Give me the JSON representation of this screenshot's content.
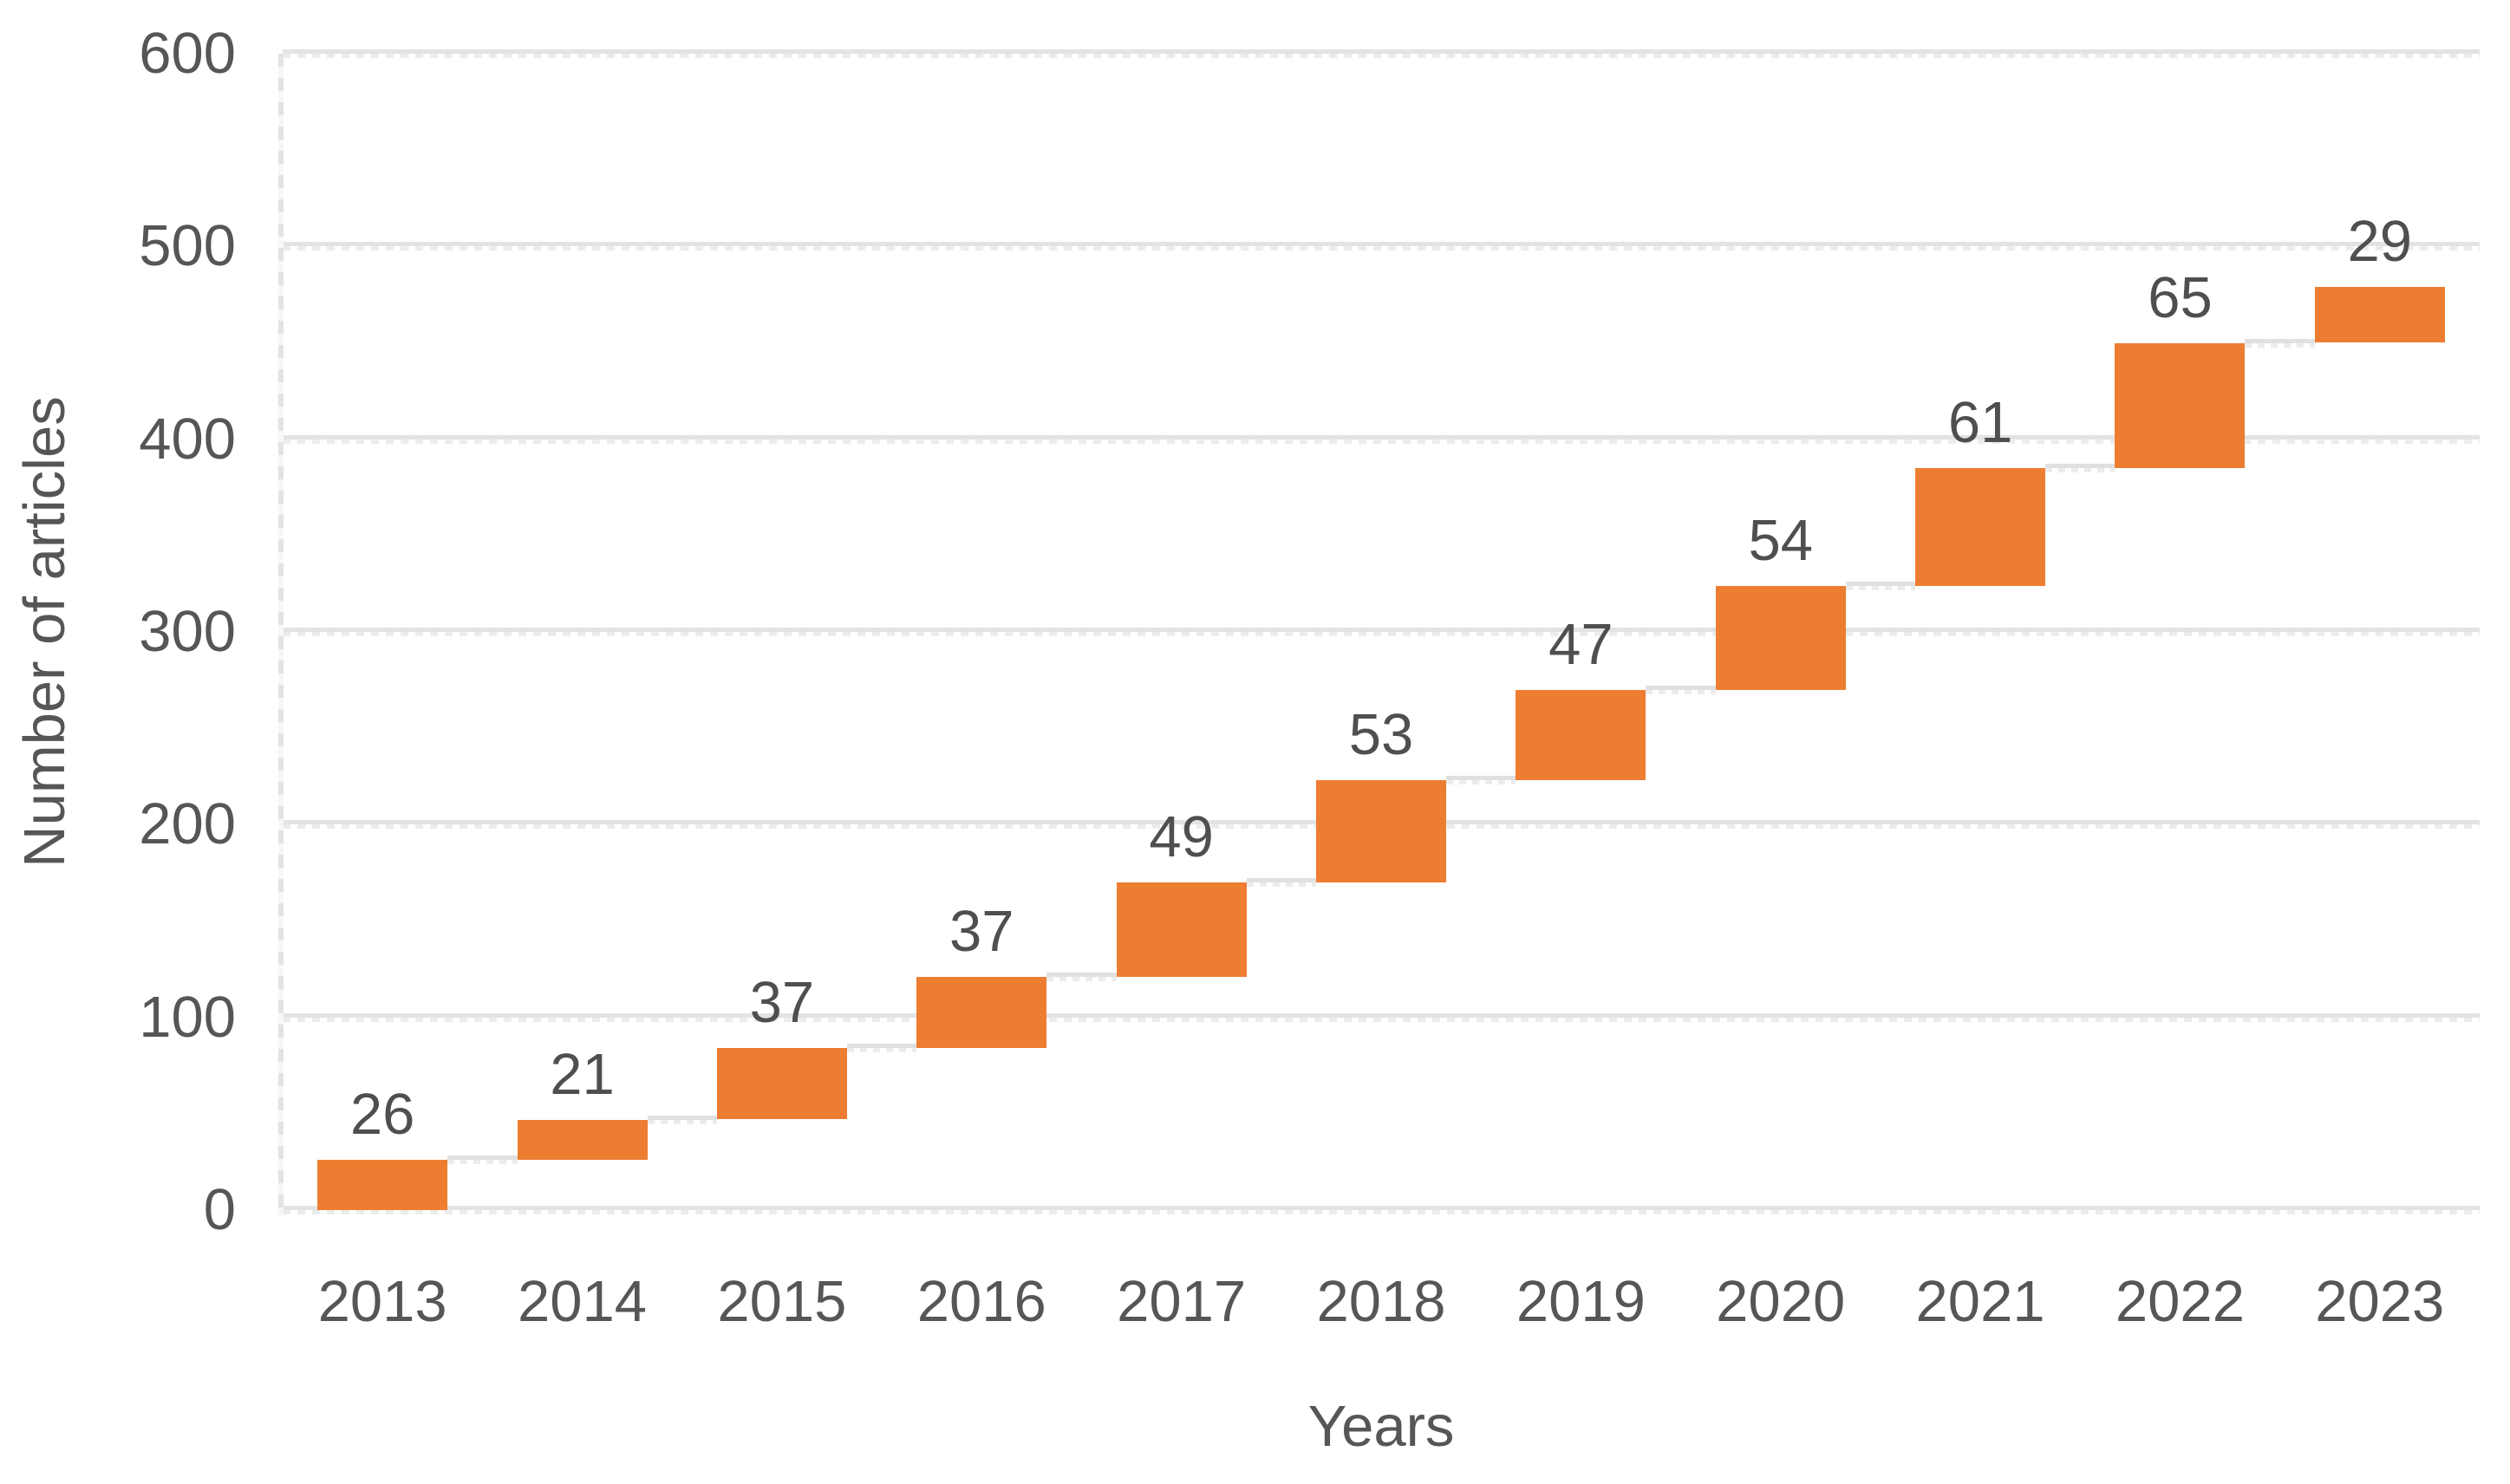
{
  "chart_data": {
    "type": "bar",
    "subtype": "waterfall",
    "title": "",
    "xlabel": "Years",
    "ylabel": "Number of articles",
    "categories": [
      "2013",
      "2014",
      "2015",
      "2016",
      "2017",
      "2018",
      "2019",
      "2020",
      "2021",
      "2022",
      "2023"
    ],
    "values": [
      26,
      21,
      37,
      37,
      49,
      53,
      47,
      54,
      61,
      65,
      29
    ],
    "cumulative_start": [
      0,
      26,
      47,
      84,
      121,
      170,
      223,
      270,
      324,
      385,
      450
    ],
    "cumulative_end": [
      26,
      47,
      84,
      121,
      170,
      223,
      270,
      324,
      385,
      450,
      479
    ],
    "data_labels": [
      "26",
      "21",
      "37",
      "37",
      "49",
      "53",
      "47",
      "54",
      "61",
      "65",
      "29"
    ],
    "ylim": [
      0,
      600
    ],
    "yticks": [
      0,
      100,
      200,
      300,
      400,
      500,
      600
    ],
    "grid": true,
    "legend": "none",
    "colors": {
      "bar": "#ED7D31",
      "gridline": "#E3E3E3",
      "connector": "#E0E0E0",
      "text": "#565656",
      "background": "#FFFFFF"
    }
  }
}
